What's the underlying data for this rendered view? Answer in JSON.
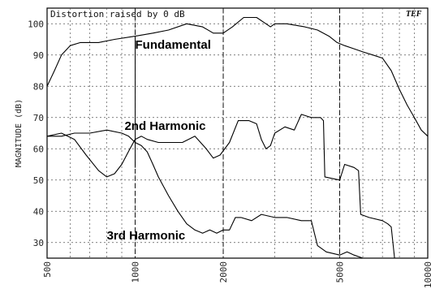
{
  "chart_data": {
    "type": "line",
    "header": "Distortion raised by   0 dB",
    "brand": "TEF",
    "ylabel": "MAGNITUDE (dB)",
    "xscale": "log",
    "xlim": [
      500,
      10000
    ],
    "ylim": [
      25,
      105
    ],
    "grid": true,
    "xticks": [
      {
        "value": 500,
        "label": "500"
      },
      {
        "value": 1000,
        "label": "1000"
      },
      {
        "value": 2000,
        "label": "2000"
      },
      {
        "value": 5000,
        "label": "5000"
      },
      {
        "value": 10000,
        "label": "10000"
      }
    ],
    "yticks": [
      30,
      40,
      50,
      60,
      70,
      80,
      90,
      100
    ],
    "annotations": [
      {
        "text": "Fundamental",
        "x": 1000,
        "y": 92
      },
      {
        "text": "2nd Harmonic",
        "x": 920,
        "y": 66
      },
      {
        "text": "3rd Harmonic",
        "x": 800,
        "y": 31
      }
    ],
    "series": [
      {
        "name": "Fundamental",
        "points": [
          [
            500,
            80
          ],
          [
            530,
            85
          ],
          [
            560,
            90
          ],
          [
            600,
            93
          ],
          [
            650,
            94
          ],
          [
            750,
            94
          ],
          [
            850,
            95
          ],
          [
            1000,
            96
          ],
          [
            1150,
            97
          ],
          [
            1300,
            98
          ],
          [
            1500,
            100
          ],
          [
            1700,
            99
          ],
          [
            1850,
            97
          ],
          [
            2000,
            97
          ],
          [
            2150,
            99
          ],
          [
            2350,
            102
          ],
          [
            2600,
            102
          ],
          [
            2800,
            100
          ],
          [
            2900,
            99
          ],
          [
            3000,
            100
          ],
          [
            3300,
            100
          ],
          [
            3800,
            99
          ],
          [
            4200,
            98
          ],
          [
            4600,
            96
          ],
          [
            4900,
            94
          ],
          [
            5200,
            93
          ],
          [
            5600,
            92
          ],
          [
            6000,
            91
          ],
          [
            6500,
            90
          ],
          [
            7000,
            89
          ],
          [
            7500,
            85
          ],
          [
            8000,
            79
          ],
          [
            8500,
            74
          ],
          [
            9000,
            70
          ],
          [
            9500,
            66
          ],
          [
            10000,
            64
          ]
        ]
      },
      {
        "name": "2nd Harmonic",
        "points": [
          [
            500,
            64
          ],
          [
            560,
            65
          ],
          [
            620,
            63
          ],
          [
            680,
            58
          ],
          [
            750,
            53
          ],
          [
            800,
            51
          ],
          [
            850,
            52
          ],
          [
            900,
            55
          ],
          [
            960,
            60
          ],
          [
            1000,
            63
          ],
          [
            1050,
            64
          ],
          [
            1100,
            63
          ],
          [
            1200,
            62
          ],
          [
            1300,
            62
          ],
          [
            1450,
            62
          ],
          [
            1600,
            64
          ],
          [
            1750,
            60
          ],
          [
            1850,
            57
          ],
          [
            1950,
            58
          ],
          [
            2100,
            62
          ],
          [
            2250,
            69
          ],
          [
            2450,
            69
          ],
          [
            2600,
            68
          ],
          [
            2700,
            63
          ],
          [
            2800,
            60
          ],
          [
            2900,
            61
          ],
          [
            3000,
            65
          ],
          [
            3250,
            67
          ],
          [
            3500,
            66
          ],
          [
            3700,
            71
          ],
          [
            4000,
            70
          ],
          [
            4300,
            70
          ],
          [
            4400,
            69
          ],
          [
            4450,
            51
          ],
          [
            5000,
            50
          ],
          [
            5200,
            55
          ],
          [
            5600,
            54
          ],
          [
            5800,
            53
          ],
          [
            5900,
            39
          ],
          [
            6300,
            38
          ],
          [
            7000,
            37
          ],
          [
            7300,
            36
          ],
          [
            7500,
            35
          ],
          [
            7700,
            25
          ],
          [
            10000,
            25
          ]
        ]
      },
      {
        "name": "3rd Harmonic",
        "points": [
          [
            500,
            64
          ],
          [
            560,
            64
          ],
          [
            620,
            65
          ],
          [
            700,
            65
          ],
          [
            800,
            66
          ],
          [
            900,
            65
          ],
          [
            950,
            64
          ],
          [
            1000,
            62
          ],
          [
            1050,
            61
          ],
          [
            1100,
            59
          ],
          [
            1150,
            55
          ],
          [
            1200,
            51
          ],
          [
            1300,
            45
          ],
          [
            1400,
            40
          ],
          [
            1500,
            36
          ],
          [
            1600,
            34
          ],
          [
            1700,
            33
          ],
          [
            1800,
            34
          ],
          [
            1900,
            33
          ],
          [
            2000,
            34
          ],
          [
            2100,
            34
          ],
          [
            2200,
            38
          ],
          [
            2300,
            38
          ],
          [
            2500,
            37
          ],
          [
            2700,
            39
          ],
          [
            3000,
            38
          ],
          [
            3300,
            38
          ],
          [
            3700,
            37
          ],
          [
            4000,
            37
          ],
          [
            4200,
            29
          ],
          [
            4500,
            27
          ],
          [
            5000,
            26
          ],
          [
            5300,
            27
          ],
          [
            5600,
            26
          ],
          [
            6000,
            25
          ],
          [
            10000,
            25
          ]
        ]
      }
    ]
  }
}
